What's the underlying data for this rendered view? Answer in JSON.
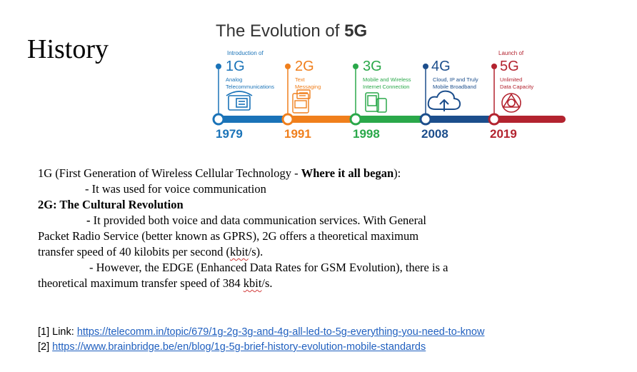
{
  "heading": "History",
  "infographic": {
    "title_prefix": "The Evolution of ",
    "title_bold": "5G",
    "generations": [
      {
        "intro": "Introduction of",
        "gen": "1G",
        "desc": [
          "Analog",
          "Telecommunications"
        ],
        "year": "1979",
        "color": "#1a73b8",
        "icon": "telephone-icon"
      },
      {
        "intro": "",
        "gen": "2G",
        "desc": [
          "Text",
          "Messaging"
        ],
        "year": "1991",
        "color": "#f07f1c",
        "icon": "sms-phone-icon"
      },
      {
        "intro": "",
        "gen": "3G",
        "desc": [
          "Mobile and Wireless",
          "Internet Connection"
        ],
        "year": "1998",
        "color": "#2aa84a",
        "icon": "mobile-devices-icon"
      },
      {
        "intro": "",
        "gen": "4G",
        "desc": [
          "Cloud, IP and Truly",
          "Mobile Broadband"
        ],
        "year": "2008",
        "color": "#1c4e8c",
        "icon": "cloud-upload-icon"
      },
      {
        "intro": "Launch of",
        "gen": "5G",
        "desc": [
          "Unlimited",
          "Data Capacity"
        ],
        "year": "2019",
        "color": "#b3232f",
        "icon": "network-globe-icon"
      }
    ]
  },
  "body": {
    "line1_normal": "1G (First Generation of Wireless Cellular Technology - ",
    "line1_bold": "Where it all began",
    "line1_end": "):",
    "line2": "-  It was used for voice communication",
    "heading2": "2G: The Cultural Revolution",
    "line3_dash": "-",
    "line3_text": "  It provided both voice and data communication services. With General",
    "line4": "Packet Radio Service (better known as GPRS), 2G offers a theoretical maximum",
    "line5_pre": "transfer speed of 40 kilobits per second (",
    "line5_squiggle": "kbit",
    "line5_post": "/s).",
    "line6": "- However, the EDGE (Enhanced Data Rates for GSM Evolution), there is a",
    "line7_pre": "theoretical maximum transfer speed of 384 ",
    "line7_squiggle": "kbit",
    "line7_post": "/s."
  },
  "references": [
    {
      "label": "[1] Link: ",
      "url": "https://telecomm.in/topic/679/1g-2g-3g-and-4g-all-led-to-5g-everything-you-need-to-know"
    },
    {
      "label": "[2] ",
      "url": "https://www.brainbridge.be/en/blog/1g-5g-brief-history-evolution-mobile-standards"
    }
  ]
}
